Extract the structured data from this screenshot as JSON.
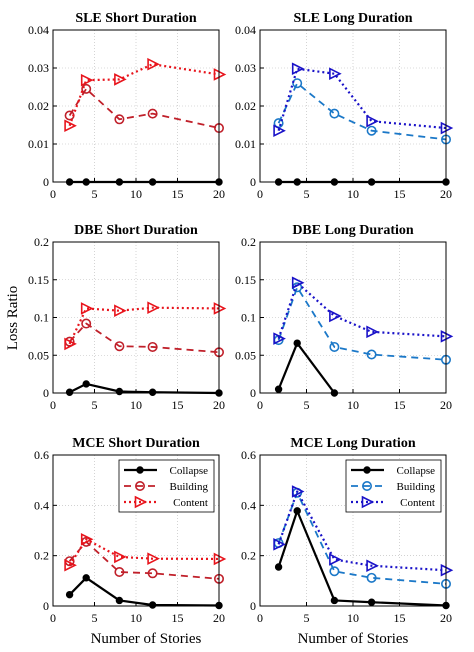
{
  "labels": {
    "ylabel": "Loss Ratio",
    "xlabel": "Number of Stories"
  },
  "colors": {
    "collapse": "#000000",
    "building_short": "#c0202a",
    "content_short": "#e8141c",
    "building_long": "#1b78c8",
    "content_long": "#1a12c8"
  },
  "chart_data": [
    {
      "type": "line",
      "title": "SLE Short Duration",
      "x": [
        2,
        4,
        8,
        12,
        20
      ],
      "xlim": [
        0,
        20
      ],
      "ylim": [
        0,
        0.04
      ],
      "xticks": [
        "0",
        "5",
        "10",
        "15",
        "20"
      ],
      "yticks": [
        "0",
        "0.01",
        "0.02",
        "0.03",
        "0.04"
      ],
      "grid": true,
      "series": [
        {
          "name": "Collapse",
          "style": "collapse",
          "values": [
            0,
            0,
            0,
            0,
            0
          ]
        },
        {
          "name": "Building",
          "style": "building_short",
          "values": [
            0.0175,
            0.0245,
            0.0165,
            0.018,
            0.0142
          ]
        },
        {
          "name": "Content",
          "style": "content_short",
          "values": [
            0.0148,
            0.0268,
            0.027,
            0.031,
            0.0283
          ]
        }
      ]
    },
    {
      "type": "line",
      "title": "SLE Long Duration",
      "x": [
        2,
        4,
        8,
        12,
        20
      ],
      "xlim": [
        0,
        20
      ],
      "ylim": [
        0,
        0.04
      ],
      "xticks": [
        "0",
        "5",
        "10",
        "15",
        "20"
      ],
      "yticks": [
        "0",
        "0.01",
        "0.02",
        "0.03",
        "0.04"
      ],
      "grid": true,
      "series": [
        {
          "name": "Collapse",
          "style": "collapse",
          "values": [
            0,
            0,
            0,
            0,
            0
          ]
        },
        {
          "name": "Building",
          "style": "building_long",
          "values": [
            0.0155,
            0.026,
            0.018,
            0.0135,
            0.0112
          ]
        },
        {
          "name": "Content",
          "style": "content_long",
          "values": [
            0.0135,
            0.0298,
            0.0285,
            0.016,
            0.0142
          ]
        }
      ]
    },
    {
      "type": "line",
      "title": "DBE Short Duration",
      "x": [
        2,
        4,
        8,
        12,
        20
      ],
      "xlim": [
        0,
        20
      ],
      "ylim": [
        0,
        0.2
      ],
      "xticks": [
        "0",
        "5",
        "10",
        "15",
        "20"
      ],
      "yticks": [
        "0",
        "0.05",
        "0.1",
        "0.15",
        "0.2"
      ],
      "grid": true,
      "series": [
        {
          "name": "Collapse",
          "style": "collapse",
          "values": [
            0.001,
            0.012,
            0.002,
            0.001,
            0.0
          ]
        },
        {
          "name": "Building",
          "style": "building_short",
          "values": [
            0.068,
            0.092,
            0.062,
            0.061,
            0.054
          ]
        },
        {
          "name": "Content",
          "style": "content_short",
          "values": [
            0.065,
            0.112,
            0.109,
            0.113,
            0.112
          ]
        }
      ]
    },
    {
      "type": "line",
      "title": "DBE Long Duration",
      "x": [
        2,
        4,
        8,
        12,
        20
      ],
      "xlim": [
        0,
        20
      ],
      "ylim": [
        0,
        0.2
      ],
      "xticks": [
        "0",
        "5",
        "10",
        "15",
        "20"
      ],
      "yticks": [
        "0",
        "0.05",
        "0.1",
        "0.15",
        "0.2"
      ],
      "grid": true,
      "series": [
        {
          "name": "Collapse",
          "style": "collapse",
          "values": [
            0.005,
            0.066,
            0.0,
            null,
            null
          ]
        },
        {
          "name": "Building",
          "style": "building_long",
          "values": [
            0.07,
            0.14,
            0.061,
            0.051,
            0.044
          ]
        },
        {
          "name": "Content",
          "style": "content_long",
          "values": [
            0.072,
            0.146,
            0.102,
            0.081,
            0.075
          ]
        }
      ]
    },
    {
      "type": "line",
      "title": "MCE Short Duration",
      "x": [
        2,
        4,
        8,
        12,
        20
      ],
      "xlim": [
        0,
        20
      ],
      "ylim": [
        0,
        0.6
      ],
      "xticks": [
        "0",
        "5",
        "10",
        "15",
        "20"
      ],
      "yticks": [
        "0",
        "0.2",
        "0.4",
        "0.6"
      ],
      "grid": true,
      "legend": "top-right",
      "series": [
        {
          "name": "Collapse",
          "style": "collapse",
          "values": [
            0.045,
            0.112,
            0.022,
            0.004,
            0.002
          ]
        },
        {
          "name": "Building",
          "style": "building_short",
          "values": [
            0.178,
            0.255,
            0.135,
            0.13,
            0.108
          ]
        },
        {
          "name": "Content",
          "style": "content_short",
          "values": [
            0.162,
            0.265,
            0.195,
            0.188,
            0.187
          ]
        }
      ]
    },
    {
      "type": "line",
      "title": "MCE Long Duration",
      "x": [
        2,
        4,
        8,
        12,
        20
      ],
      "xlim": [
        0,
        20
      ],
      "ylim": [
        0,
        0.6
      ],
      "xticks": [
        "0",
        "5",
        "10",
        "15",
        "20"
      ],
      "yticks": [
        "0",
        "0.2",
        "0.4",
        "0.6"
      ],
      "grid": true,
      "legend": "top-right",
      "series": [
        {
          "name": "Collapse",
          "style": "collapse",
          "values": [
            0.155,
            0.378,
            0.022,
            0.015,
            0.002
          ]
        },
        {
          "name": "Building",
          "style": "building_long",
          "values": [
            0.25,
            0.45,
            0.138,
            0.112,
            0.088
          ]
        },
        {
          "name": "Content",
          "style": "content_long",
          "values": [
            0.245,
            0.455,
            0.185,
            0.16,
            0.142
          ]
        }
      ]
    }
  ]
}
